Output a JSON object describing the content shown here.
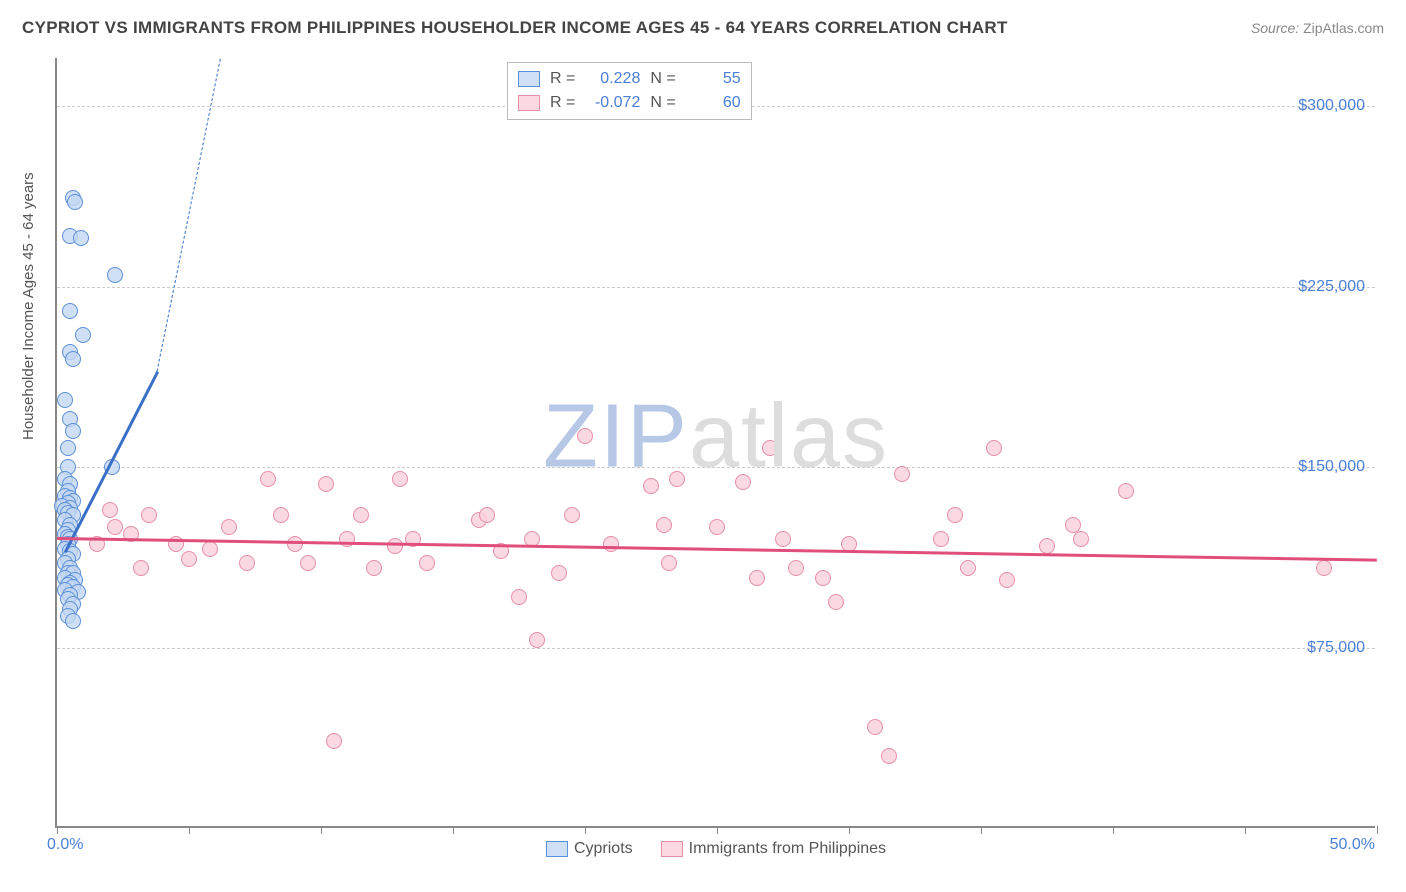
{
  "title": "CYPRIOT VS IMMIGRANTS FROM PHILIPPINES HOUSEHOLDER INCOME AGES 45 - 64 YEARS CORRELATION CHART",
  "source_label": "Source:",
  "source_value": "ZipAtlas.com",
  "ylabel": "Householder Income Ages 45 - 64 years",
  "watermark_dark": "ZIP",
  "watermark_light": "atlas",
  "watermark_dark_color": "#b7c8e6",
  "watermark_light_color": "#dddddd",
  "colors": {
    "tick_label": "#4a7fd6",
    "grid": "#cccccc",
    "axis": "#888888",
    "title": "#444444",
    "series_a_stroke": "#5b8fd6",
    "series_a_fill": "#c3d7f2cc",
    "series_b_stroke": "#e68fa6",
    "series_b_fill": "#f9d0dbcc",
    "reg_a": "#3a6fc7",
    "reg_b": "#e04f7b"
  },
  "chart": {
    "type": "scatter",
    "xlim": [
      0,
      50
    ],
    "ylim": [
      0,
      320000
    ],
    "ytick_vals": [
      75000,
      150000,
      225000,
      300000
    ],
    "ytick_labels": [
      "$75,000",
      "$150,000",
      "$225,000",
      "$300,000"
    ],
    "xtick_vals": [
      0,
      5,
      10,
      15,
      20,
      25,
      30,
      35,
      40,
      45,
      50
    ],
    "xtick_label_positions": {
      "0": "0.0%",
      "50": "50.0%"
    },
    "marker_radius": 8,
    "background_color": "#ffffff"
  },
  "series": [
    {
      "key": "a",
      "label": "Cypriots",
      "r": "0.228",
      "n": "55",
      "regression": {
        "x1": 0.3,
        "y1": 115000,
        "x2": 6.2,
        "y2": 320000,
        "dashed_extension": true
      },
      "points": [
        [
          0.6,
          262000
        ],
        [
          0.7,
          260000
        ],
        [
          0.5,
          246000
        ],
        [
          0.9,
          245000
        ],
        [
          2.2,
          230000
        ],
        [
          0.5,
          215000
        ],
        [
          1.0,
          205000
        ],
        [
          0.5,
          198000
        ],
        [
          0.6,
          195000
        ],
        [
          0.3,
          178000
        ],
        [
          0.5,
          170000
        ],
        [
          0.6,
          165000
        ],
        [
          0.4,
          158000
        ],
        [
          2.1,
          150000
        ],
        [
          0.4,
          150000
        ],
        [
          0.3,
          145000
        ],
        [
          0.5,
          143000
        ],
        [
          0.4,
          140000
        ],
        [
          0.3,
          138000
        ],
        [
          0.5,
          137000
        ],
        [
          0.6,
          136000
        ],
        [
          0.4,
          135000
        ],
        [
          0.2,
          134000
        ],
        [
          0.5,
          133000
        ],
        [
          0.3,
          132000
        ],
        [
          0.4,
          131000
        ],
        [
          0.6,
          130000
        ],
        [
          0.3,
          128000
        ],
        [
          0.5,
          126000
        ],
        [
          0.4,
          124000
        ],
        [
          0.3,
          122000
        ],
        [
          0.4,
          121000
        ],
        [
          0.5,
          120000
        ],
        [
          0.4,
          118000
        ],
        [
          0.3,
          116000
        ],
        [
          0.5,
          115000
        ],
        [
          0.6,
          114000
        ],
        [
          0.4,
          112000
        ],
        [
          0.3,
          110000
        ],
        [
          0.5,
          108000
        ],
        [
          0.4,
          106000
        ],
        [
          0.6,
          106000
        ],
        [
          0.3,
          104000
        ],
        [
          0.7,
          103000
        ],
        [
          0.5,
          102000
        ],
        [
          0.4,
          101000
        ],
        [
          0.6,
          100000
        ],
        [
          0.3,
          99000
        ],
        [
          0.8,
          98000
        ],
        [
          0.5,
          97000
        ],
        [
          0.4,
          95000
        ],
        [
          0.6,
          93000
        ],
        [
          0.5,
          91000
        ],
        [
          0.4,
          88000
        ],
        [
          0.6,
          86000
        ]
      ]
    },
    {
      "key": "b",
      "label": "Immigrants from Philippines",
      "r": "-0.072",
      "n": "60",
      "regression": {
        "x1": 0,
        "y1": 121000,
        "x2": 50,
        "y2": 112000,
        "dashed_extension": false
      },
      "points": [
        [
          20,
          163000
        ],
        [
          27,
          158000
        ],
        [
          35.5,
          158000
        ],
        [
          2,
          132000
        ],
        [
          2.2,
          125000
        ],
        [
          3.5,
          130000
        ],
        [
          4.5,
          118000
        ],
        [
          5,
          112000
        ],
        [
          5.8,
          116000
        ],
        [
          6.5,
          125000
        ],
        [
          7.2,
          110000
        ],
        [
          8,
          145000
        ],
        [
          8.5,
          130000
        ],
        [
          9,
          118000
        ],
        [
          9.5,
          110000
        ],
        [
          10.2,
          143000
        ],
        [
          11,
          120000
        ],
        [
          11.5,
          130000
        ],
        [
          12,
          108000
        ],
        [
          12.8,
          117000
        ],
        [
          13,
          145000
        ],
        [
          13.5,
          120000
        ],
        [
          14,
          110000
        ],
        [
          16,
          128000
        ],
        [
          16.3,
          130000
        ],
        [
          16.8,
          115000
        ],
        [
          17.5,
          96000
        ],
        [
          18,
          120000
        ],
        [
          19,
          106000
        ],
        [
          19.5,
          130000
        ],
        [
          18.2,
          78000
        ],
        [
          10.5,
          36000
        ],
        [
          22.5,
          142000
        ],
        [
          23,
          126000
        ],
        [
          23.2,
          110000
        ],
        [
          23.5,
          145000
        ],
        [
          26,
          144000
        ],
        [
          26.5,
          104000
        ],
        [
          27.5,
          120000
        ],
        [
          28,
          108000
        ],
        [
          29,
          104000
        ],
        [
          29.5,
          94000
        ],
        [
          30,
          118000
        ],
        [
          31,
          42000
        ],
        [
          32,
          147000
        ],
        [
          33.5,
          120000
        ],
        [
          31.5,
          30000
        ],
        [
          34,
          130000
        ],
        [
          34.5,
          108000
        ],
        [
          36,
          103000
        ],
        [
          37.5,
          117000
        ],
        [
          38.5,
          126000
        ],
        [
          38.8,
          120000
        ],
        [
          40.5,
          140000
        ],
        [
          48,
          108000
        ],
        [
          1.5,
          118000
        ],
        [
          2.8,
          122000
        ],
        [
          3.2,
          108000
        ],
        [
          25,
          125000
        ],
        [
          21,
          118000
        ]
      ]
    }
  ],
  "legend_top_rows": [
    {
      "series": "a",
      "r_label": "R =",
      "n_label": "N ="
    },
    {
      "series": "b",
      "r_label": "R =",
      "n_label": "N ="
    }
  ]
}
